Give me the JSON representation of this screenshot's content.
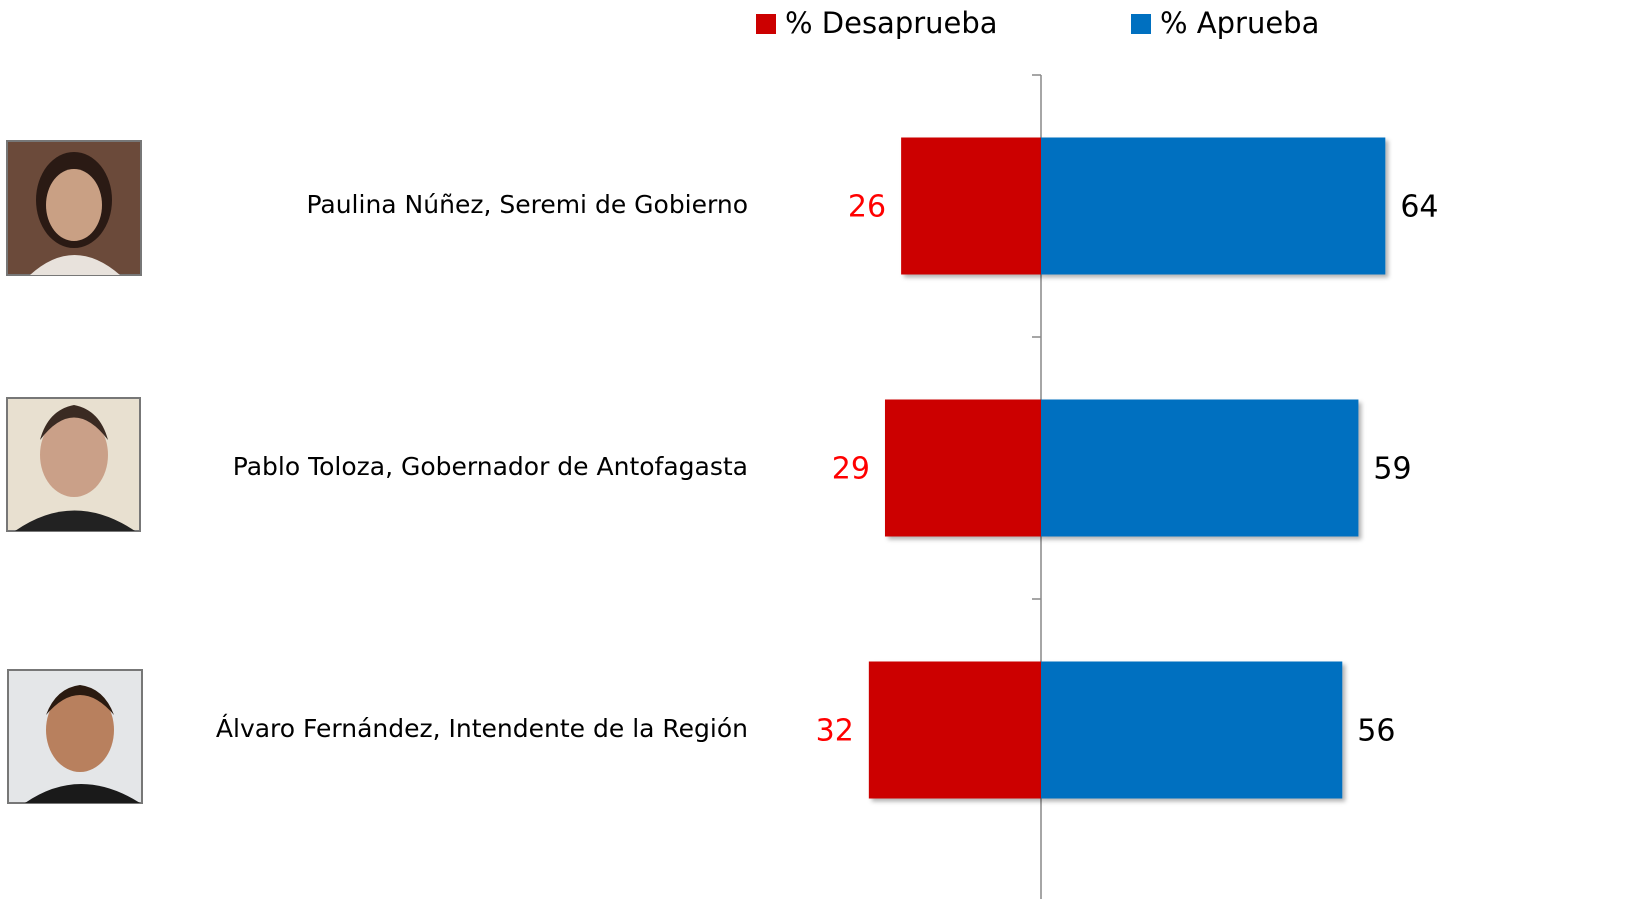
{
  "chart_data": {
    "type": "diverging_bar",
    "categories": [
      "Paulina Núñez, Seremi de Gobierno",
      "Pablo Toloza, Gobernador de Antofagasta",
      "Álvaro Fernández, Intendente de la Región"
    ],
    "series": [
      {
        "name": "% Desaprueba",
        "color": "#cc0000",
        "label_color": "#ff0000",
        "values": [
          26,
          29,
          32
        ]
      },
      {
        "name": "% Aprueba",
        "color": "#0070c0",
        "label_color": "#000000",
        "values": [
          64,
          59,
          56
        ]
      }
    ],
    "legend": "top"
  }
}
